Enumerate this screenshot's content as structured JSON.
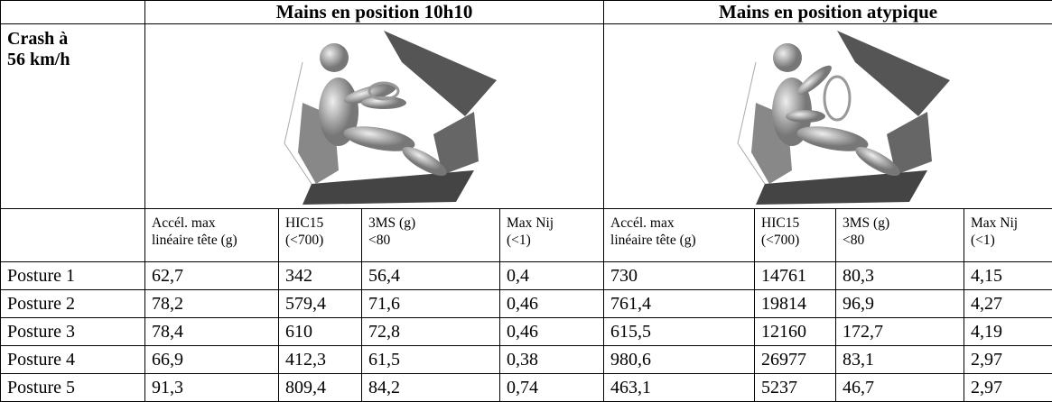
{
  "table": {
    "groups": [
      "Mains en position 10h10",
      "Mains en position atypique"
    ],
    "scenario": [
      "Crash à",
      "56 km/h"
    ],
    "subheaders": [
      [
        "Accél. max",
        "linéaire tête (g)"
      ],
      [
        "HIC15",
        "(<700)"
      ],
      [
        "3MS  (g)",
        "<80"
      ],
      [
        "Max Nij",
        "(<1)"
      ],
      [
        "Accél. max",
        "linéaire tête (g)"
      ],
      [
        "HIC15",
        "(<700)"
      ],
      [
        "3MS  (g)",
        "<80"
      ],
      [
        "Max Nij",
        "(<1)"
      ]
    ],
    "rows": [
      [
        "Posture 1",
        "62,7",
        "342",
        "56,4",
        "0,4",
        "730",
        "14761",
        "80,3",
        "4,15"
      ],
      [
        "Posture 2",
        "78,2",
        "579,4",
        "71,6",
        "0,46",
        "761,4",
        "19814",
        "96,9",
        "4,27"
      ],
      [
        "Posture 3",
        "78,4",
        "610",
        "72,8",
        "0,46",
        "615,5",
        "12160",
        "172,7",
        "4,19"
      ],
      [
        "Posture 4",
        "66,9",
        "412,3",
        "61,5",
        "0,38",
        "980,6",
        "26977",
        "83,1",
        "2,97"
      ],
      [
        "Posture 5",
        "91,3",
        "809,4",
        "84,2",
        "0,74",
        "463,1",
        "5237",
        "46,7",
        "2,97"
      ]
    ]
  }
}
